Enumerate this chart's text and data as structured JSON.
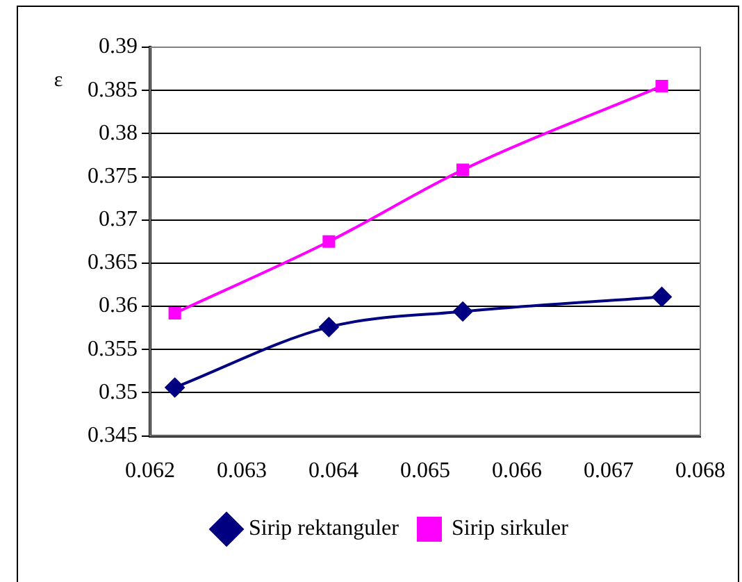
{
  "chart_data": {
    "type": "line",
    "ylabel": "ε",
    "x": [
      0.06227,
      0.06395,
      0.06541,
      0.06758
    ],
    "series": [
      {
        "name": "Sirip rektanguler",
        "color": "#000080",
        "marker": "diamond",
        "values": [
          0.3506,
          0.3576,
          0.3594,
          0.3611
        ]
      },
      {
        "name": "Sirip sirkuler",
        "color": "#ff00ff",
        "marker": "square",
        "values": [
          0.3592,
          0.3675,
          0.3758,
          0.3855
        ]
      }
    ],
    "xlim": [
      0.062,
      0.068
    ],
    "xticks": [
      0.062,
      0.063,
      0.064,
      0.065,
      0.066,
      0.067,
      0.068
    ],
    "ylim": [
      0.345,
      0.39
    ],
    "yticks": [
      0.345,
      0.35,
      0.355,
      0.36,
      0.365,
      0.37,
      0.375,
      0.38,
      0.385,
      0.39
    ],
    "grid": "y",
    "legend": "bottom"
  }
}
